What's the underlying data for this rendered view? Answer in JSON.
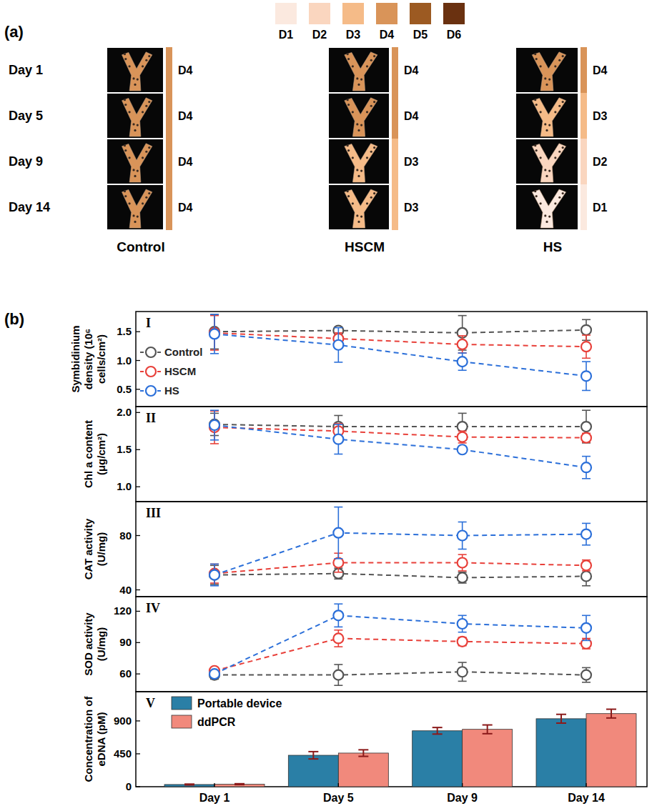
{
  "panel_a": {
    "label": "(a)",
    "scale": [
      {
        "label": "D1",
        "color": "#fbe9df"
      },
      {
        "label": "D2",
        "color": "#fad6bf"
      },
      {
        "label": "D3",
        "color": "#f5bb88"
      },
      {
        "label": "D4",
        "color": "#d99459"
      },
      {
        "label": "D5",
        "color": "#9c5a22"
      },
      {
        "label": "D6",
        "color": "#6a3110"
      }
    ],
    "days": [
      "Day 1",
      "Day 5",
      "Day 9",
      "Day 14"
    ],
    "groups": [
      {
        "name": "Control",
        "scores": [
          "D4",
          "D4",
          "D4",
          "D4"
        ]
      },
      {
        "name": "HSCM",
        "scores": [
          "D4",
          "D4",
          "D3",
          "D3"
        ]
      },
      {
        "name": "HS",
        "scores": [
          "D4",
          "D3",
          "D2",
          "D1"
        ]
      }
    ]
  },
  "panel_b_label": "(b)",
  "chart_data": [
    {
      "type": "line",
      "title": "I",
      "y_label": "Symbidinium density (10⁶ cells/cm²)",
      "categories": [
        "Day 1",
        "Day 5",
        "Day 9",
        "Day 14"
      ],
      "ylim": [
        0.2,
        1.85
      ],
      "yticks": [
        0.5,
        {
          "value": 1,
          "label": "1.0"
        },
        1.5
      ],
      "tick_labels": "y",
      "legend": "left",
      "series": [
        {
          "name": "Control",
          "color": "#555555",
          "marker": "circle",
          "line_style": "dashed",
          "values": [
            1.5,
            1.52,
            1.48,
            1.53
          ],
          "errors": [
            0.3,
            0.05,
            0.3,
            0.18
          ]
        },
        {
          "name": "HSCM",
          "color": "#e8403a",
          "marker": "circle",
          "line_style": "dashed",
          "values": [
            1.48,
            1.38,
            1.28,
            1.24
          ],
          "errors": [
            0.3,
            0.1,
            0.15,
            0.2
          ]
        },
        {
          "name": "HS",
          "color": "#2b6fd9",
          "marker": "circle",
          "line_style": "dashed",
          "values": [
            1.46,
            1.27,
            0.98,
            0.73
          ],
          "errors": [
            0.34,
            0.3,
            0.15,
            0.25
          ]
        }
      ]
    },
    {
      "type": "line",
      "title": "II",
      "y_label": "Chl a content (μg/cm²)",
      "categories": [
        "Day 1",
        "Day 5",
        "Day 9",
        "Day 14"
      ],
      "ylim": [
        0.8,
        2.08
      ],
      "yticks": [
        {
          "value": 1,
          "label": "1.0"
        },
        1.5,
        {
          "value": 2,
          "label": "2.0"
        }
      ],
      "tick_labels": "y",
      "series": [
        {
          "color": "#555555",
          "marker": "circle",
          "line_style": "dashed",
          "values": [
            1.84,
            1.81,
            1.81,
            1.81
          ],
          "errors": [
            0.15,
            0.15,
            0.18,
            0.22
          ]
        },
        {
          "color": "#e8403a",
          "marker": "circle",
          "line_style": "dashed",
          "values": [
            1.8,
            1.75,
            1.67,
            1.66
          ],
          "errors": [
            0.22,
            0.1,
            0.08,
            0.06
          ]
        },
        {
          "color": "#2b6fd9",
          "marker": "circle",
          "line_style": "dashed",
          "values": [
            1.83,
            1.64,
            1.5,
            1.26
          ],
          "errors": [
            0.2,
            0.2,
            0.03,
            0.15
          ]
        }
      ]
    },
    {
      "type": "line",
      "title": "III",
      "y_label": "CAT activity (U/mg)",
      "categories": [
        "Day 1",
        "Day 5",
        "Day 9",
        "Day 14"
      ],
      "ylim": [
        35,
        105
      ],
      "yticks": [
        40,
        80
      ],
      "tick_labels": "y",
      "series": [
        {
          "color": "#555555",
          "marker": "circle",
          "line_style": "dashed",
          "values": [
            51,
            52,
            49,
            50
          ],
          "errors": [
            7,
            4,
            4,
            7
          ]
        },
        {
          "color": "#e8403a",
          "marker": "circle",
          "line_style": "dashed",
          "values": [
            52,
            60,
            60,
            58
          ],
          "errors": [
            7,
            7,
            6,
            4
          ]
        },
        {
          "color": "#2b6fd9",
          "marker": "circle",
          "line_style": "dashed",
          "values": [
            51,
            82,
            80,
            81
          ],
          "errors": [
            8,
            19,
            10,
            8
          ]
        }
      ]
    },
    {
      "type": "line",
      "title": "IV",
      "y_label": "SOD activity (U/mg)",
      "categories": [
        "Day 1",
        "Day 5",
        "Day 9",
        "Day 14"
      ],
      "ylim": [
        43,
        134
      ],
      "yticks": [
        60,
        90,
        120
      ],
      "tick_labels": "y",
      "series": [
        {
          "color": "#555555",
          "marker": "circle",
          "line_style": "dashed",
          "values": [
            59,
            59,
            62,
            59
          ],
          "errors": [
            4,
            10,
            9,
            7
          ]
        },
        {
          "color": "#e8403a",
          "marker": "circle",
          "line_style": "dashed",
          "values": [
            63,
            94,
            91,
            89
          ],
          "errors": [
            3,
            8,
            4,
            5
          ]
        },
        {
          "color": "#2b6fd9",
          "marker": "circle",
          "line_style": "dashed",
          "values": [
            60,
            116,
            108,
            104
          ],
          "errors": [
            3,
            11,
            8,
            12
          ]
        }
      ]
    },
    {
      "type": "bar",
      "title": "V",
      "y_label": "Concentration of eDNA (pM)",
      "categories": [
        "Day 1",
        "Day 5",
        "Day 9",
        "Day 14"
      ],
      "ylim": [
        0,
        1300
      ],
      "yticks": [
        0,
        450,
        900
      ],
      "legend": "upper left",
      "series": [
        {
          "name": "Portable device",
          "color": "#2a7fa6",
          "values": [
            30,
            430,
            765,
            930
          ],
          "errors": [
            6,
            50,
            45,
            60
          ]
        },
        {
          "name": "ddPCR",
          "color": "#f1897c",
          "values": [
            35,
            460,
            785,
            1000
          ],
          "errors": [
            6,
            45,
            60,
            60
          ]
        }
      ]
    }
  ]
}
